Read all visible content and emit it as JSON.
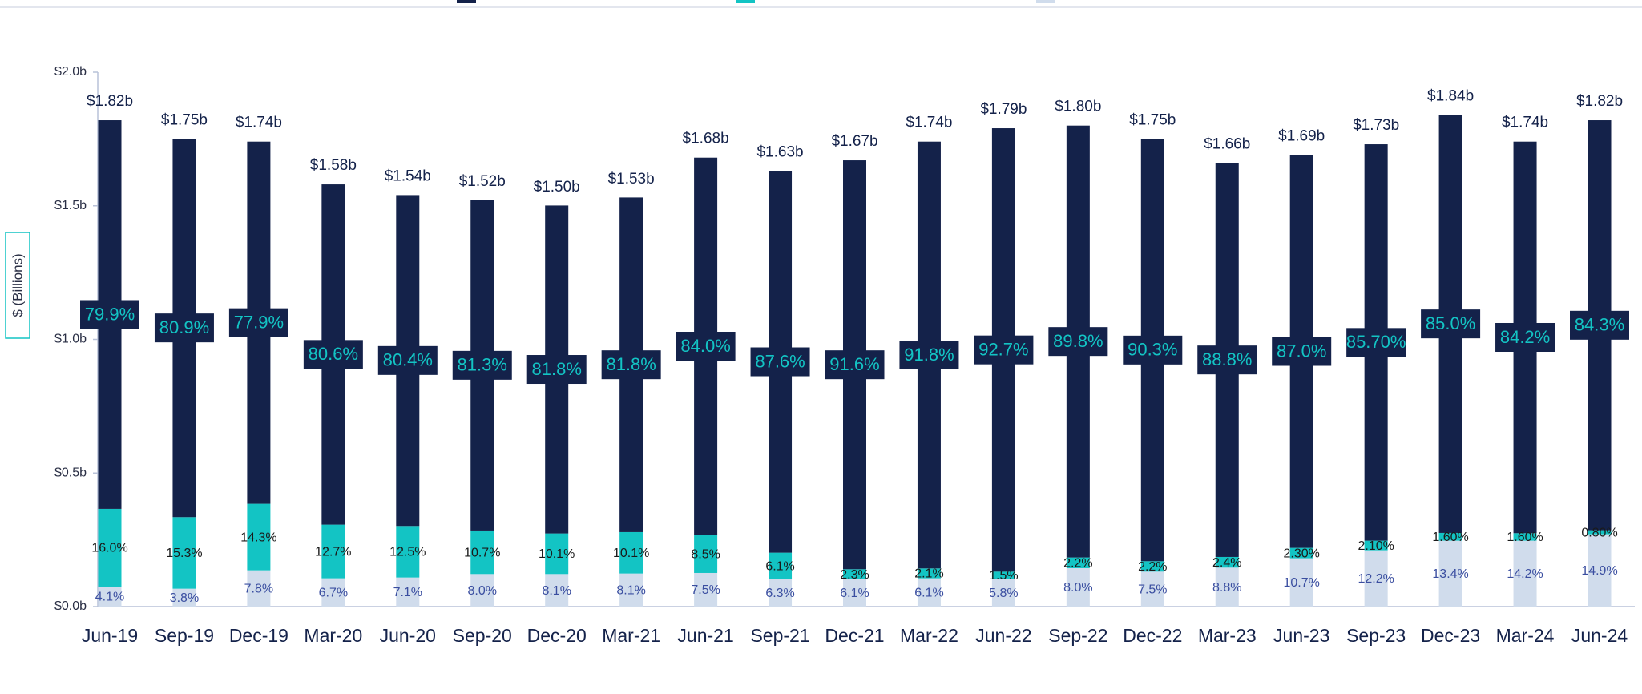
{
  "chart_data": {
    "type": "stacked_bar",
    "y_label": "$ (Billions)",
    "categories": [
      "Jun-19",
      "Sep-19",
      "Dec-19",
      "Mar-20",
      "Jun-20",
      "Sep-20",
      "Dec-20",
      "Mar-21",
      "Jun-21",
      "Sep-21",
      "Dec-21",
      "Mar-22",
      "Jun-22",
      "Sep-22",
      "Dec-22",
      "Mar-23",
      "Jun-23",
      "Sep-23",
      "Dec-23",
      "Mar-24",
      "Jun-24"
    ],
    "ylim": [
      0,
      2
    ],
    "yticks": [
      {
        "value": 0,
        "label": "$0.0b"
      },
      {
        "value": 0.5,
        "label": "$0.5b"
      },
      {
        "value": 1,
        "label": "$1.0b"
      },
      {
        "value": 1.5,
        "label": "$1.5b"
      },
      {
        "value": 2,
        "label": "$2.0b"
      }
    ],
    "series": [
      {
        "color": "#d0dcec",
        "label_color": "#3a4ea0",
        "values": [
          0.075,
          0.067,
          0.136,
          0.106,
          0.109,
          0.122,
          0.122,
          0.124,
          0.126,
          0.103,
          0.102,
          0.106,
          0.104,
          0.144,
          0.131,
          0.146,
          0.181,
          0.211,
          0.247,
          0.247,
          0.271
        ],
        "share_labels": [
          "4.1%",
          "3.8%",
          "7.8%",
          "6.7%",
          "7.1%",
          "8.0%",
          "8.1%",
          "8.1%",
          "7.5%",
          "6.3%",
          "6.1%",
          "6.1%",
          "5.8%",
          "8.0%",
          "7.5%",
          "8.8%",
          "10.7%",
          "12.2%",
          "13.4%",
          "14.2%",
          "14.9%"
        ]
      },
      {
        "color": "#13c4c4",
        "label_color": "#1a1a1a",
        "values": [
          0.291,
          0.268,
          0.249,
          0.201,
          0.193,
          0.163,
          0.152,
          0.155,
          0.143,
          0.099,
          0.038,
          0.037,
          0.027,
          0.04,
          0.039,
          0.04,
          0.039,
          0.036,
          0.029,
          0.028,
          0.015
        ],
        "share_labels": [
          "16.0%",
          "15.3%",
          "14.3%",
          "12.7%",
          "12.5%",
          "10.7%",
          "10.1%",
          "10.1%",
          "8.5%",
          "6.1%",
          "2.3%",
          "2.1%",
          "1.5%",
          "2.2%",
          "2.2%",
          "2.4%",
          "2.30%",
          "2.10%",
          "1.60%",
          "1.60%",
          "0.80%"
        ]
      },
      {
        "color": "#14224a",
        "label_color": "#13c4c4",
        "values": [
          1.454,
          1.416,
          1.355,
          1.273,
          1.238,
          1.236,
          1.227,
          1.252,
          1.411,
          1.428,
          1.53,
          1.597,
          1.659,
          1.616,
          1.58,
          1.474,
          1.47,
          1.483,
          1.564,
          1.465,
          1.534
        ],
        "share_labels": [
          "79.9%",
          "80.9%",
          "77.9%",
          "80.6%",
          "80.4%",
          "81.3%",
          "81.8%",
          "81.8%",
          "84.0%",
          "87.6%",
          "91.6%",
          "91.8%",
          "92.7%",
          "89.8%",
          "90.3%",
          "88.8%",
          "87.0%",
          "85.70%",
          "85.0%",
          "84.2%",
          "84.3%"
        ]
      }
    ],
    "totals": {
      "values": [
        1.82,
        1.75,
        1.74,
        1.58,
        1.54,
        1.52,
        1.5,
        1.53,
        1.68,
        1.63,
        1.67,
        1.74,
        1.79,
        1.8,
        1.75,
        1.66,
        1.69,
        1.73,
        1.84,
        1.74,
        1.82
      ],
      "value_labels": [
        "$1.82b",
        "$1.75b",
        "$1.74b",
        "$1.58b",
        "$1.54b",
        "$1.52b",
        "$1.50b",
        "$1.53b",
        "$1.68b",
        "$1.63b",
        "$1.67b",
        "$1.74b",
        "$1.79b",
        "$1.80b",
        "$1.75b",
        "$1.66b",
        "$1.69b",
        "$1.73b",
        "$1.84b",
        "$1.74b",
        "$1.82b"
      ]
    }
  }
}
